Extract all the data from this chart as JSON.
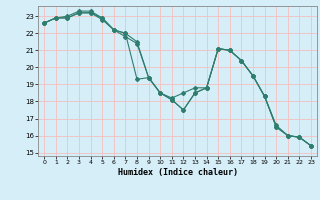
{
  "xlabel": "Humidex (Indice chaleur)",
  "ylabel": "",
  "background_color": "#d6eef8",
  "grid_color": "#f5c0c0",
  "line_color": "#2e7d6e",
  "xlim": [
    -0.5,
    23.5
  ],
  "ylim": [
    14.8,
    23.6
  ],
  "yticks": [
    15,
    16,
    17,
    18,
    19,
    20,
    21,
    22,
    23
  ],
  "xticks": [
    0,
    1,
    2,
    3,
    4,
    5,
    6,
    7,
    8,
    9,
    10,
    11,
    12,
    13,
    14,
    15,
    16,
    17,
    18,
    19,
    20,
    21,
    22,
    23
  ],
  "series": [
    [
      22.6,
      22.9,
      22.9,
      23.2,
      23.2,
      22.8,
      22.2,
      21.8,
      21.4,
      19.4,
      18.5,
      18.1,
      17.5,
      18.5,
      18.8,
      21.1,
      21.0,
      20.4,
      19.5,
      18.3,
      16.5,
      16.0,
      15.9,
      15.4
    ],
    [
      22.6,
      22.9,
      22.9,
      23.2,
      23.2,
      22.9,
      22.2,
      22.0,
      21.5,
      19.4,
      18.5,
      18.1,
      17.5,
      18.5,
      18.8,
      21.1,
      21.0,
      20.4,
      19.5,
      18.3,
      16.5,
      16.0,
      15.9,
      15.4
    ],
    [
      22.6,
      22.9,
      23.0,
      23.3,
      23.3,
      22.9,
      22.2,
      22.0,
      19.3,
      19.4,
      18.5,
      18.2,
      18.5,
      18.8,
      18.8,
      21.1,
      21.0,
      20.4,
      19.5,
      18.3,
      16.6,
      16.0,
      15.9,
      15.4
    ]
  ]
}
